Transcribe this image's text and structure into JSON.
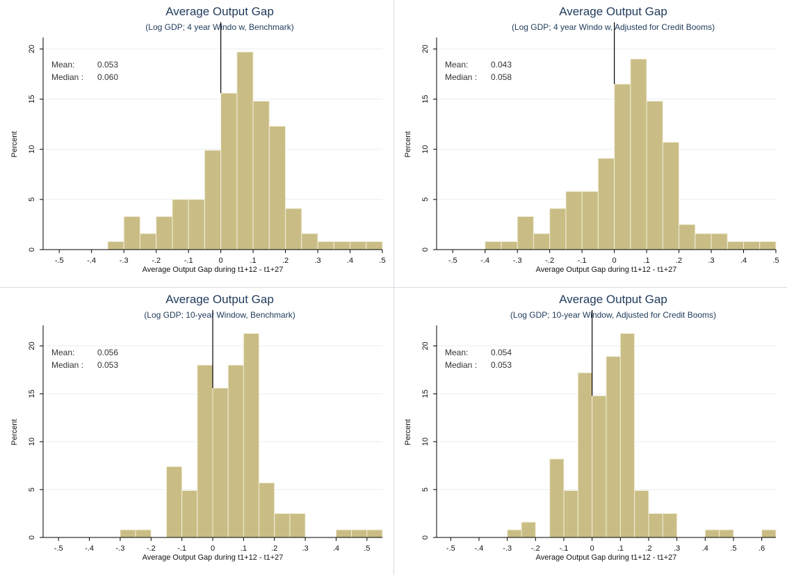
{
  "chart_data": [
    {
      "type": "bar",
      "title": "Average Output Gap",
      "subtitle": "(Log GDP; 4 year Windo w, Benchmark)",
      "xlabel": "Average Output Gap during  t1+12 - t1+27",
      "ylabel": "Percent",
      "xlim": [
        -0.55,
        0.5
      ],
      "ylim": [
        0,
        21
      ],
      "xticks": [
        -0.5,
        -0.4,
        -0.3,
        -0.2,
        -0.1,
        0,
        0.1,
        0.2,
        0.3,
        0.4,
        0.5
      ],
      "xtick_labels": [
        "-.5",
        "-.4",
        "-.3",
        "-.2",
        "-.1",
        "0",
        ".1",
        ".2",
        ".3",
        ".4",
        ".5"
      ],
      "yticks": [
        0,
        5,
        10,
        15,
        20
      ],
      "ytick_labels": [
        "0",
        "5",
        "10",
        "15",
        "20"
      ],
      "bin_width": 0.05,
      "bins": [
        {
          "x0": -0.35,
          "value": 0.8
        },
        {
          "x0": -0.3,
          "value": 3.3
        },
        {
          "x0": -0.25,
          "value": 1.6
        },
        {
          "x0": -0.2,
          "value": 3.3
        },
        {
          "x0": -0.15,
          "value": 5.0
        },
        {
          "x0": -0.1,
          "value": 5.0
        },
        {
          "x0": -0.05,
          "value": 9.9
        },
        {
          "x0": 0.0,
          "value": 15.6
        },
        {
          "x0": 0.05,
          "value": 19.7
        },
        {
          "x0": 0.1,
          "value": 14.8
        },
        {
          "x0": 0.15,
          "value": 12.3
        },
        {
          "x0": 0.2,
          "value": 4.1
        },
        {
          "x0": 0.25,
          "value": 1.6
        },
        {
          "x0": 0.3,
          "value": 0.8
        },
        {
          "x0": 0.35,
          "value": 0.8
        },
        {
          "x0": 0.4,
          "value": 0.8
        },
        {
          "x0": 0.45,
          "value": 0.8
        }
      ],
      "vline_x": 0,
      "stats": {
        "mean_label": "Mean:",
        "mean_value": "0.053",
        "median_label": "Median :",
        "median_value": "0.060"
      },
      "grid": true
    },
    {
      "type": "bar",
      "title": "Average Output Gap",
      "subtitle": "(Log GDP; 4 year Windo w, Adjusted for Credit Booms)",
      "xlabel": "Average Output Gap during  t1+12 - t1+27",
      "ylabel": "Percent",
      "xlim": [
        -0.55,
        0.5
      ],
      "ylim": [
        0,
        21
      ],
      "xticks": [
        -0.5,
        -0.4,
        -0.3,
        -0.2,
        -0.1,
        0,
        0.1,
        0.2,
        0.3,
        0.4,
        0.5
      ],
      "xtick_labels": [
        "-.5",
        "-.4",
        "-.3",
        "-.2",
        "-.1",
        "0",
        ".1",
        ".2",
        ".3",
        ".4",
        ".5"
      ],
      "yticks": [
        0,
        5,
        10,
        15,
        20
      ],
      "ytick_labels": [
        "0",
        "5",
        "10",
        "15",
        "20"
      ],
      "bin_width": 0.05,
      "bins": [
        {
          "x0": -0.4,
          "value": 0.8
        },
        {
          "x0": -0.35,
          "value": 0.8
        },
        {
          "x0": -0.3,
          "value": 3.3
        },
        {
          "x0": -0.25,
          "value": 1.6
        },
        {
          "x0": -0.2,
          "value": 4.1
        },
        {
          "x0": -0.15,
          "value": 5.8
        },
        {
          "x0": -0.1,
          "value": 5.8
        },
        {
          "x0": -0.05,
          "value": 9.1
        },
        {
          "x0": 0.0,
          "value": 16.5
        },
        {
          "x0": 0.05,
          "value": 19.0
        },
        {
          "x0": 0.1,
          "value": 14.8
        },
        {
          "x0": 0.15,
          "value": 10.7
        },
        {
          "x0": 0.2,
          "value": 2.5
        },
        {
          "x0": 0.25,
          "value": 1.6
        },
        {
          "x0": 0.3,
          "value": 1.6
        },
        {
          "x0": 0.35,
          "value": 0.8
        },
        {
          "x0": 0.4,
          "value": 0.8
        },
        {
          "x0": 0.45,
          "value": 0.8
        }
      ],
      "vline_x": 0,
      "stats": {
        "mean_label": "Mean:",
        "mean_value": "0.043",
        "median_label": "Median :",
        "median_value": "0.058"
      },
      "grid": true
    },
    {
      "type": "bar",
      "title": "Average Output Gap",
      "subtitle": "(Log GDP; 10-year Window, Benchmark)",
      "xlabel": "Average Output Gap during  t1+12 - t1+27",
      "ylabel": "Percent",
      "xlim": [
        -0.55,
        0.55
      ],
      "ylim": [
        0,
        22
      ],
      "xticks": [
        -0.5,
        -0.4,
        -0.3,
        -0.2,
        -0.1,
        0,
        0.1,
        0.2,
        0.3,
        0.4,
        0.5
      ],
      "xtick_labels": [
        "-.5",
        "-.4",
        "-.3",
        "-.2",
        "-.1",
        "0",
        ".1",
        ".2",
        ".3",
        ".4",
        ".5"
      ],
      "yticks": [
        0,
        5,
        10,
        15,
        20
      ],
      "ytick_labels": [
        "0",
        "5",
        "10",
        "15",
        "20"
      ],
      "bin_width": 0.05,
      "bins": [
        {
          "x0": -0.3,
          "value": 0.8
        },
        {
          "x0": -0.25,
          "value": 0.8
        },
        {
          "x0": -0.15,
          "value": 7.4
        },
        {
          "x0": -0.1,
          "value": 4.9
        },
        {
          "x0": -0.05,
          "value": 18.0
        },
        {
          "x0": 0.0,
          "value": 15.6
        },
        {
          "x0": 0.05,
          "value": 18.0
        },
        {
          "x0": 0.1,
          "value": 21.3
        },
        {
          "x0": 0.15,
          "value": 5.7
        },
        {
          "x0": 0.2,
          "value": 2.5
        },
        {
          "x0": 0.25,
          "value": 2.5
        },
        {
          "x0": 0.4,
          "value": 0.8
        },
        {
          "x0": 0.45,
          "value": 0.8
        },
        {
          "x0": 0.5,
          "value": 0.8
        }
      ],
      "vline_x": 0,
      "stats": {
        "mean_label": "Mean:",
        "mean_value": "0.056",
        "median_label": "Median :",
        "median_value": "0.053"
      },
      "grid": true
    },
    {
      "type": "bar",
      "title": "Average Output Gap",
      "subtitle": "(Log GDP; 10-year Window, Adjusted for Credit Booms)",
      "xlabel": "Average Output Gap during  t1+12 - t1+27",
      "ylabel": "Percent",
      "xlim": [
        -0.55,
        0.65
      ],
      "ylim": [
        0,
        22
      ],
      "xticks": [
        -0.5,
        -0.4,
        -0.3,
        -0.2,
        -0.1,
        0,
        0.1,
        0.2,
        0.3,
        0.4,
        0.5,
        0.6
      ],
      "xtick_labels": [
        "-.5",
        "-.4",
        "-.3",
        "-.2",
        "-.1",
        "0",
        ".1",
        ".2",
        ".3",
        ".4",
        ".5",
        ".6"
      ],
      "yticks": [
        0,
        5,
        10,
        15,
        20
      ],
      "ytick_labels": [
        "0",
        "5",
        "10",
        "15",
        "20"
      ],
      "bin_width": 0.05,
      "bins": [
        {
          "x0": -0.3,
          "value": 0.8
        },
        {
          "x0": -0.25,
          "value": 1.6
        },
        {
          "x0": -0.15,
          "value": 8.2
        },
        {
          "x0": -0.1,
          "value": 4.9
        },
        {
          "x0": -0.05,
          "value": 17.2
        },
        {
          "x0": 0.0,
          "value": 14.8
        },
        {
          "x0": 0.05,
          "value": 18.9
        },
        {
          "x0": 0.1,
          "value": 21.3
        },
        {
          "x0": 0.15,
          "value": 4.9
        },
        {
          "x0": 0.2,
          "value": 2.5
        },
        {
          "x0": 0.25,
          "value": 2.5
        },
        {
          "x0": 0.4,
          "value": 0.8
        },
        {
          "x0": 0.45,
          "value": 0.8
        },
        {
          "x0": 0.6,
          "value": 0.8
        }
      ],
      "vline_x": 0,
      "stats": {
        "mean_label": "Mean:",
        "mean_value": "0.054",
        "median_label": "Median :",
        "median_value": "0.053"
      },
      "grid": true
    }
  ],
  "colors": {
    "bar_fill": "#c9bd85",
    "bar_stroke": "#f2eedb",
    "grid": "#e9edf1",
    "axis": "#000000",
    "title": "#1f3a5a",
    "divider": "#d6dbe0"
  }
}
